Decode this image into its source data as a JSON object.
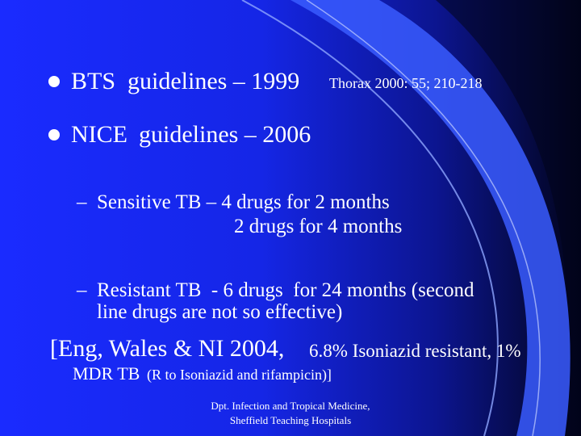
{
  "slide": {
    "bullets": [
      {
        "term": "BTS",
        "rest": "guidelines – 1999",
        "ref": "Thorax 2000: 55; 210-218"
      },
      {
        "term": "NICE",
        "rest": "guidelines – 2006"
      }
    ],
    "sub_bullets": [
      {
        "dash": "–",
        "line1": "Sensitive TB – 4 drugs for 2 months",
        "line2": "2 drugs for 4 months"
      },
      {
        "dash": "–",
        "line1": "Resistant TB  - 6 drugs  for 24 months (second",
        "line2": "line drugs are not so effective)"
      }
    ],
    "note": {
      "part1": "[Eng, Wales & NI 2004,",
      "part2": "6.8% Isoniazid resistant, 1%",
      "line2a": "MDR TB",
      "line2b": "(R to Isoniazid and rifampicin)]"
    },
    "footer": {
      "line1": "Dpt. Infection and Tropical Medicine,",
      "line2": "Sheffield Teaching Hospitals"
    },
    "colors": {
      "background": "#1a2bff",
      "text": "#ffffff",
      "accent_curve": "#3a5cff"
    }
  }
}
